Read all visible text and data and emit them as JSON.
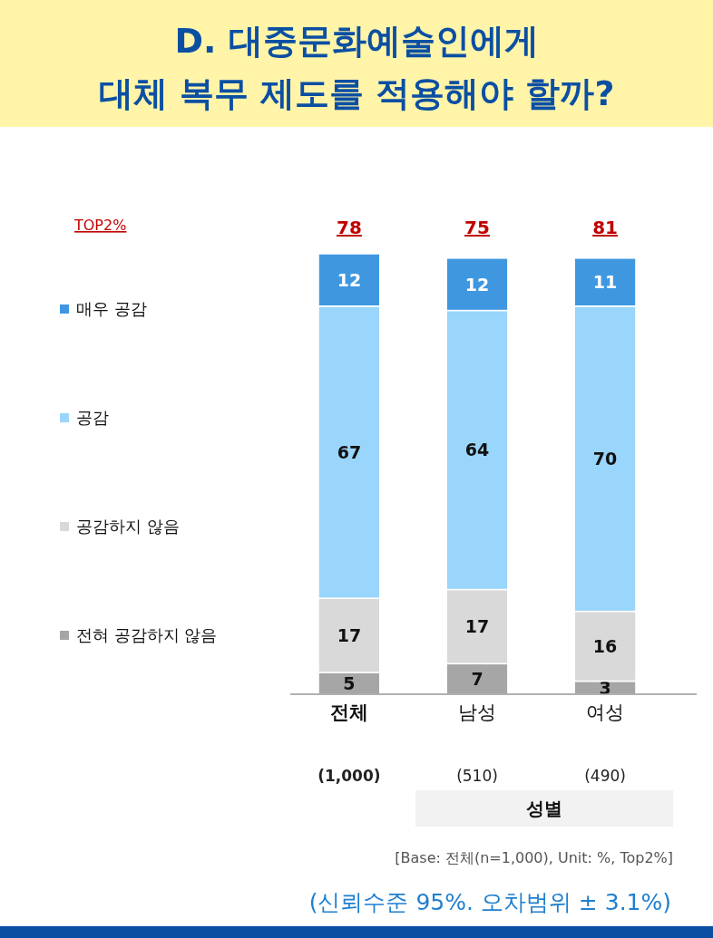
{
  "chart_data": {
    "type": "bar",
    "title": "D. 대중문화예술인에게\n대체 복무 제도를 적용해야 할까?",
    "categories": [
      "전체",
      "남성",
      "여성"
    ],
    "stacked": true,
    "data_labels": true,
    "legend": "left",
    "series": [
      {
        "name": "전혀 공감하지 않음",
        "color": "#a6a6a6",
        "values": [
          5,
          7,
          3
        ]
      },
      {
        "name": "공감하지 않음",
        "color": "#d9d9d9",
        "values": [
          17,
          17,
          16
        ]
      },
      {
        "name": "공감",
        "color": "#9ad5fb",
        "values": [
          67,
          64,
          70
        ]
      },
      {
        "name": "매우 공감",
        "color": "#3f97e0",
        "values": [
          12,
          12,
          11
        ]
      }
    ],
    "annotations": [
      "TOP2%",
      "78",
      "75",
      "81",
      "(1,000)",
      "(510)",
      "(490)",
      "성별",
      "[Base: 전체(n=1,000), Unit: %, Top2%]",
      "(신뢰수준 95%. 오차범위 ± 3.1%)"
    ]
  }
}
